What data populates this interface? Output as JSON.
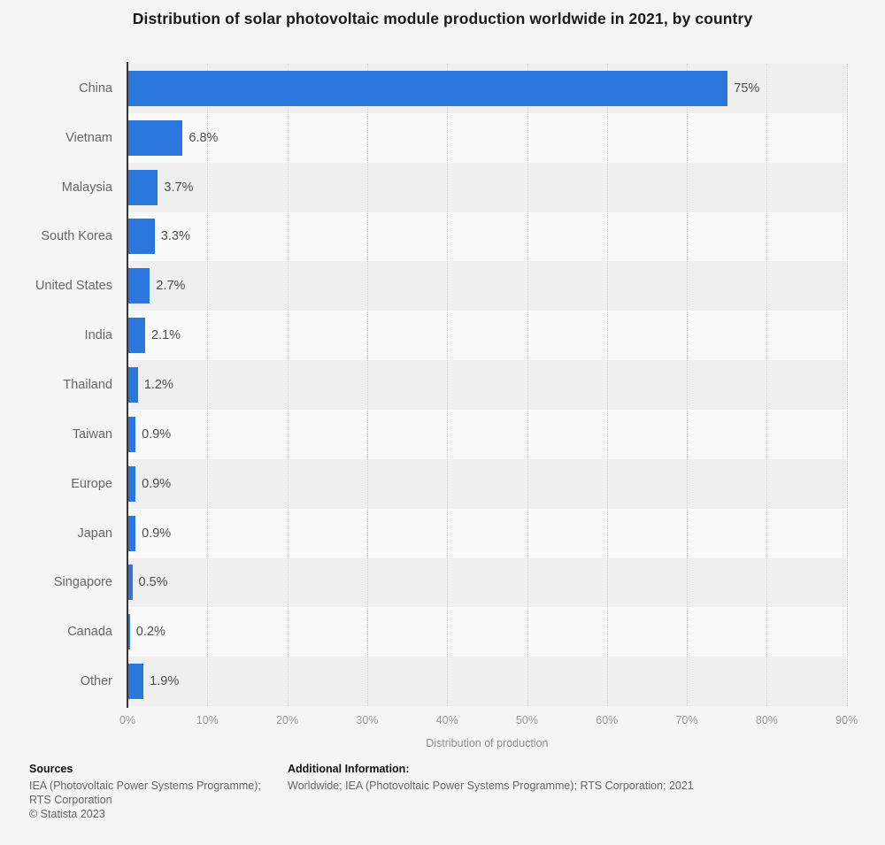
{
  "page": {
    "title": "Distribution of solar photovoltaic module production worldwide in 2021, by country"
  },
  "chart_data": {
    "type": "bar",
    "orientation": "horizontal",
    "title": "Distribution of solar photovoltaic module production worldwide in 2021, by country",
    "categories": [
      "China",
      "Vietnam",
      "Malaysia",
      "South Korea",
      "United States",
      "India",
      "Thailand",
      "Taiwan",
      "Europe",
      "Japan",
      "Singapore",
      "Canada",
      "Other"
    ],
    "values": [
      75,
      6.8,
      3.7,
      3.3,
      2.7,
      2.1,
      1.2,
      0.9,
      0.9,
      0.9,
      0.5,
      0.2,
      1.9
    ],
    "value_labels": [
      "75%",
      "6.8%",
      "3.7%",
      "3.3%",
      "2.7%",
      "2.1%",
      "1.2%",
      "0.9%",
      "0.9%",
      "0.9%",
      "0.5%",
      "0.2%",
      "1.9%"
    ],
    "xlabel": "Distribution of production",
    "ylabel": "",
    "x_ticks": [
      "0%",
      "10%",
      "20%",
      "30%",
      "40%",
      "50%",
      "60%",
      "70%",
      "80%",
      "90%"
    ],
    "x_tick_values": [
      0,
      10,
      20,
      30,
      40,
      50,
      60,
      70,
      80,
      90
    ],
    "xlim": [
      0,
      90
    ],
    "grid": "vertical-dotted",
    "legend": "none",
    "bar_color": "#2c77dd",
    "band_color_even": "#efefef",
    "band_color_odd": "#fafafa"
  },
  "footer": {
    "sources_heading": "Sources",
    "sources_lines": [
      "IEA (Photovoltaic Power Systems Programme);",
      "RTS Corporation",
      "© Statista 2023"
    ],
    "additional_heading": "Additional Information:",
    "additional_text": "Worldwide; IEA (Photovoltaic Power Systems Programme); RTS Corporation; 2021"
  }
}
